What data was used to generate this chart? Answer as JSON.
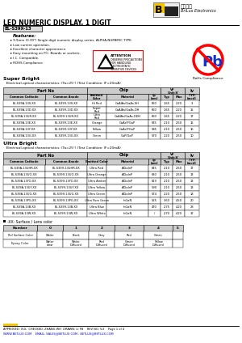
{
  "title_main": "LED NUMERIC DISPLAY, 1 DIGIT",
  "part_number": "BL-S39X-13",
  "company_name": "BriLux Electronics",
  "company_chinese": "百荆光电",
  "features": [
    "9.9mm (0.39\") Single digit numeric display series, ALPHA-NUMERIC TYPE.",
    "Low current operation.",
    "Excellent character appearance.",
    "Easy mounting on P.C. Boards or sockets.",
    "I.C. Compatible.",
    "ROHS Compliance."
  ],
  "super_bright_title": "Super Bright",
  "super_bright_subtitle": "   Electrical-optical characteristics: (Ta=25°) (Test Condition: IF=20mA)",
  "ultra_bright_title": "Ultra Bright",
  "ultra_bright_subtitle": "   Electrical-optical characteristics: (Ta=25°) (Test Condition: IF=20mA)",
  "sb_rows": [
    [
      "BL-S39A-13S-XX",
      "BL-S399-13S-XX",
      "Hi Red",
      "GaAlAs/GaAs.SH",
      "660",
      "1.65",
      "2.20",
      "3"
    ],
    [
      "BL-S39A-13D-XX",
      "BL-S399-13D-XX",
      "Super\nRed",
      "GaAlAs/GaAs.DH",
      "660",
      "1.65",
      "2.20",
      "15"
    ],
    [
      "BL-S39A-13UR-XX",
      "BL-S399-13UR-XX",
      "Ultra\nRed",
      "GaAlAs/GaAs.DDH",
      "660",
      "1.65",
      "2.20",
      "17"
    ],
    [
      "BL-S39A-13E-XX",
      "BL-S399-13E-XX",
      "Orange",
      "GaAsP/GaP",
      "635",
      "2.10",
      "2.50",
      "16"
    ],
    [
      "BL-S39A-13Y-XX",
      "BL-S399-13Y-XX",
      "Yellow",
      "GaAsP/GaP",
      "585",
      "2.10",
      "2.50",
      "16"
    ],
    [
      "BL-S39A-13G-XX",
      "BL-S399-13G-XX",
      "Green",
      "GaP/GaP",
      "570",
      "2.20",
      "2.50",
      "10"
    ]
  ],
  "ub_rows": [
    [
      "BL-S39A-13UHR-XX",
      "BL-S399-13UHR-XX",
      "Ultra Red",
      "AlGaInP",
      "645",
      "2.10",
      "2.50",
      "17"
    ],
    [
      "BL-S39A-13UO-XX",
      "BL-S399-13UO-XX",
      "Ultra Orange",
      "AlGaInP",
      "630",
      "2.10",
      "2.50",
      "13"
    ],
    [
      "BL-S39A-13YO-XX",
      "BL-S399-13YO-XX",
      "Ultra Amber",
      "AlGaInP",
      "619",
      "2.10",
      "2.50",
      "13"
    ],
    [
      "BL-S39A-13UY-XX",
      "BL-S399-13UY-XX",
      "Ultra Yellow",
      "AlGaInP",
      "590",
      "2.10",
      "2.50",
      "13"
    ],
    [
      "BL-S39A-13UG-XX",
      "BL-S399-13UG-XX",
      "Ultra Green",
      "AlGaInP",
      "574",
      "2.20",
      "2.50",
      "18"
    ],
    [
      "BL-S39A-13PG-XX",
      "BL-S399-13PG-XX",
      "Ultra Pure Green",
      "InGaN",
      "525",
      "3.60",
      "4.50",
      "20"
    ],
    [
      "BL-S39A-13B-XX",
      "BL-S399-13B-XX",
      "Ultra Blue",
      "InGaN",
      "470",
      "2.75",
      "4.20",
      "28"
    ],
    [
      "BL-S39A-13W-XX",
      "BL-S399-13W-XX",
      "Ultra White",
      "InGaN",
      "/",
      "2.70",
      "4.20",
      "32"
    ]
  ],
  "surface_title": "-XX: Surface / Lens color",
  "surface_headers": [
    "Number",
    "0",
    "1",
    "2",
    "3",
    "4",
    "5"
  ],
  "surface_rows": [
    [
      "Ref Surface Color",
      "White",
      "Black",
      "Gray",
      "Red",
      "Green",
      ""
    ],
    [
      "Epoxy Color",
      "Water\nclear",
      "White\nDiffused",
      "Red\nDiffused",
      "Green\nDiffused",
      "Yellow\nDiffused",
      ""
    ]
  ],
  "footer_text": "APPROVED: XUL  CHECKED: ZHANG WH  DRAWN: LI FB    REV NO: V.2    Page 1 of 4",
  "footer_url": "WWW.BETLUX.COM    EMAIL: SALES@BETLUX.COM , BETLUX@BETLUX.COM",
  "bg_color": "#ffffff"
}
